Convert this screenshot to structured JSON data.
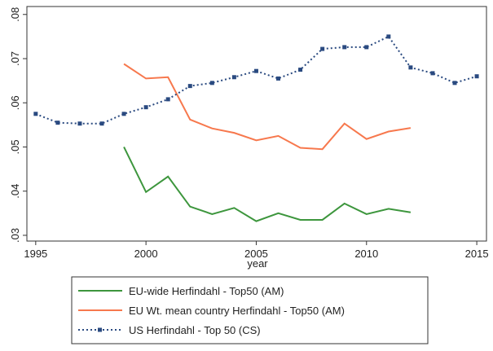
{
  "chart_data": {
    "type": "line",
    "x_label": "year",
    "x": [
      1995,
      1996,
      1997,
      1998,
      1999,
      2000,
      2001,
      2002,
      2003,
      2004,
      2005,
      2006,
      2007,
      2008,
      2009,
      2010,
      2011,
      2012,
      2013,
      2014,
      2015
    ],
    "series": [
      {
        "name": "EU-wide Herfindahl - Top50 (AM)",
        "color": "#3d963d",
        "style": "solid",
        "marker": false,
        "values": [
          null,
          null,
          null,
          null,
          0.05,
          0.0398,
          0.0433,
          0.0365,
          0.0348,
          0.0362,
          0.0332,
          0.035,
          0.0335,
          0.0335,
          0.0372,
          0.0348,
          0.036,
          0.0352,
          null,
          null,
          null
        ]
      },
      {
        "name": "EU Wt. mean country Herfindahl - Top50 (AM)",
        "color": "#f7784d",
        "style": "solid",
        "marker": false,
        "values": [
          null,
          null,
          null,
          null,
          0.0688,
          0.0655,
          0.0658,
          0.0562,
          0.0542,
          0.0532,
          0.0515,
          0.0525,
          0.0498,
          0.0495,
          0.0553,
          0.0518,
          0.0535,
          0.0543,
          null,
          null,
          null
        ]
      },
      {
        "name": "US Herfindahl - Top 50 (CS)",
        "color": "#2a4a80",
        "style": "dotted",
        "marker": true,
        "values": [
          0.0575,
          0.0555,
          0.0553,
          0.0553,
          0.0575,
          0.059,
          0.0608,
          0.0638,
          0.0645,
          0.0658,
          0.0672,
          0.0655,
          0.0675,
          0.0722,
          0.0726,
          0.0726,
          0.075,
          0.068,
          0.0667,
          0.0645,
          0.066
        ]
      }
    ],
    "xlim": [
      1994.6,
      2015.44
    ],
    "xticks": [
      1995,
      2000,
      2005,
      2010,
      2015
    ],
    "ylim": [
      0.0287,
      0.0818
    ],
    "yticks": [
      {
        "value": 0.03,
        "label": ".03"
      },
      {
        "value": 0.04,
        "label": ".04"
      },
      {
        "value": 0.05,
        "label": ".05"
      },
      {
        "value": 0.06,
        "label": ".06"
      },
      {
        "value": 0.07,
        "label": ".07"
      },
      {
        "value": 0.08,
        "label": ".08"
      }
    ],
    "legend": "bottom"
  }
}
